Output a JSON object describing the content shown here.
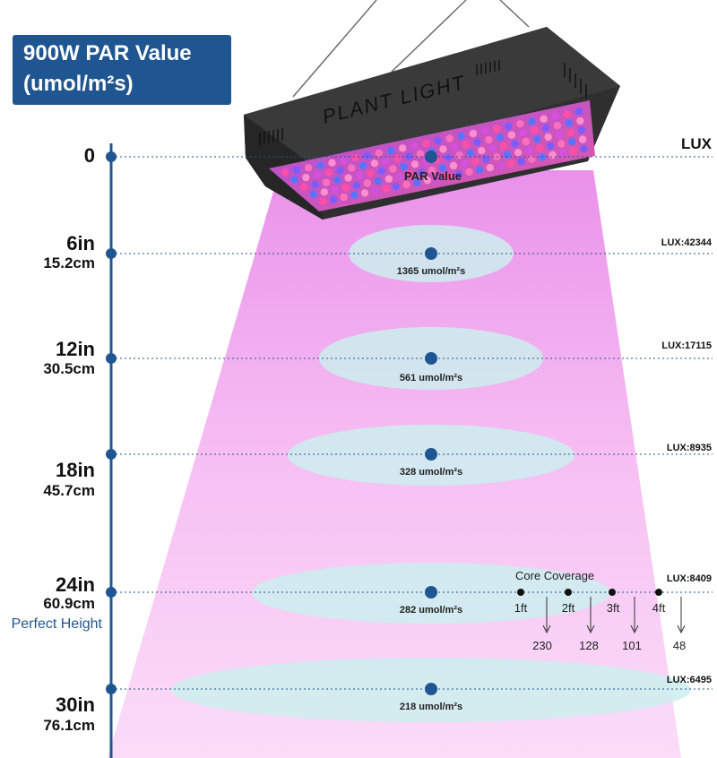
{
  "title": {
    "line1": "900W  PAR Value",
    "line2": "(umol/m²s)"
  },
  "lamp": {
    "brand_text": "PLANT LIGHT"
  },
  "lux_header": "LUX",
  "par_label": "PAR Value",
  "rows": [
    {
      "inches": "0",
      "cm": "",
      "par": "",
      "lux": ""
    },
    {
      "inches": "6in",
      "cm": "15.2cm",
      "par": "1365 umol/m²s",
      "lux": "LUX:42344"
    },
    {
      "inches": "12in",
      "cm": "30.5cm",
      "par": "561 umol/m²s",
      "lux": "LUX:17115"
    },
    {
      "inches": "18in",
      "cm": "45.7cm",
      "par": "328 umol/m²s",
      "lux": "LUX:8935"
    },
    {
      "inches": "24in",
      "cm": "60.9cm",
      "par": "282 umol/m²s",
      "lux": "LUX:8409"
    },
    {
      "inches": "30in",
      "cm": "76.1cm",
      "par": "218 umol/m²s",
      "lux": "LUX:6495"
    }
  ],
  "perfect_height": "Perfect Height",
  "core_coverage": {
    "title": "Core Coverage",
    "points": [
      {
        "label": "1ft",
        "value": "230"
      },
      {
        "label": "2ft",
        "value": "128"
      },
      {
        "label": "3ft",
        "value": "101"
      },
      {
        "label": "4ft",
        "value": "48"
      }
    ]
  },
  "colors": {
    "title_bg": "#1f5692",
    "axis": "#1f5692",
    "marker": "#1f5692",
    "beam": "#f2a6ef",
    "ellipse": "#cfeeee",
    "lamp_body": "#2f2f2f"
  }
}
